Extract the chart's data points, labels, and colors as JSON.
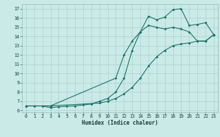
{
  "title": "",
  "xlabel": "Humidex (Indice chaleur)",
  "xlim": [
    -0.5,
    23.5
  ],
  "ylim": [
    5.8,
    17.5
  ],
  "xticks": [
    0,
    1,
    2,
    3,
    4,
    5,
    6,
    7,
    8,
    9,
    10,
    11,
    12,
    13,
    14,
    15,
    16,
    17,
    18,
    19,
    20,
    21,
    22,
    23
  ],
  "yticks": [
    6,
    7,
    8,
    9,
    10,
    11,
    12,
    13,
    14,
    15,
    16,
    17
  ],
  "bg_color": "#caeae8",
  "grid_color": "#aacfcc",
  "line_color": "#1a6e65",
  "line1_x": [
    0,
    1,
    2,
    3,
    4,
    5,
    6,
    7,
    8,
    9,
    10,
    11,
    12,
    13,
    14,
    15,
    16,
    17,
    18,
    19,
    20,
    21,
    22,
    23
  ],
  "line1_y": [
    6.5,
    6.5,
    6.5,
    6.3,
    6.4,
    6.45,
    6.5,
    6.6,
    6.7,
    7.0,
    7.3,
    8.0,
    9.5,
    12.5,
    14.5,
    16.2,
    15.8,
    16.1,
    16.9,
    17.0,
    15.2,
    15.3,
    15.5,
    14.2
  ],
  "line2_x": [
    0,
    3,
    11,
    12,
    13,
    14,
    15,
    16,
    17,
    18,
    19,
    20,
    21,
    22,
    23
  ],
  "line2_y": [
    6.5,
    6.5,
    9.5,
    12.0,
    13.5,
    14.5,
    15.2,
    15.0,
    14.8,
    15.0,
    14.8,
    14.5,
    13.5,
    13.5,
    14.2
  ],
  "line3_x": [
    0,
    3,
    9,
    10,
    11,
    12,
    13,
    14,
    15,
    16,
    17,
    18,
    19,
    20,
    21,
    22,
    23
  ],
  "line3_y": [
    6.5,
    6.5,
    6.8,
    7.0,
    7.3,
    7.8,
    8.5,
    9.5,
    10.8,
    11.8,
    12.5,
    13.0,
    13.2,
    13.3,
    13.5,
    13.5,
    14.2
  ]
}
